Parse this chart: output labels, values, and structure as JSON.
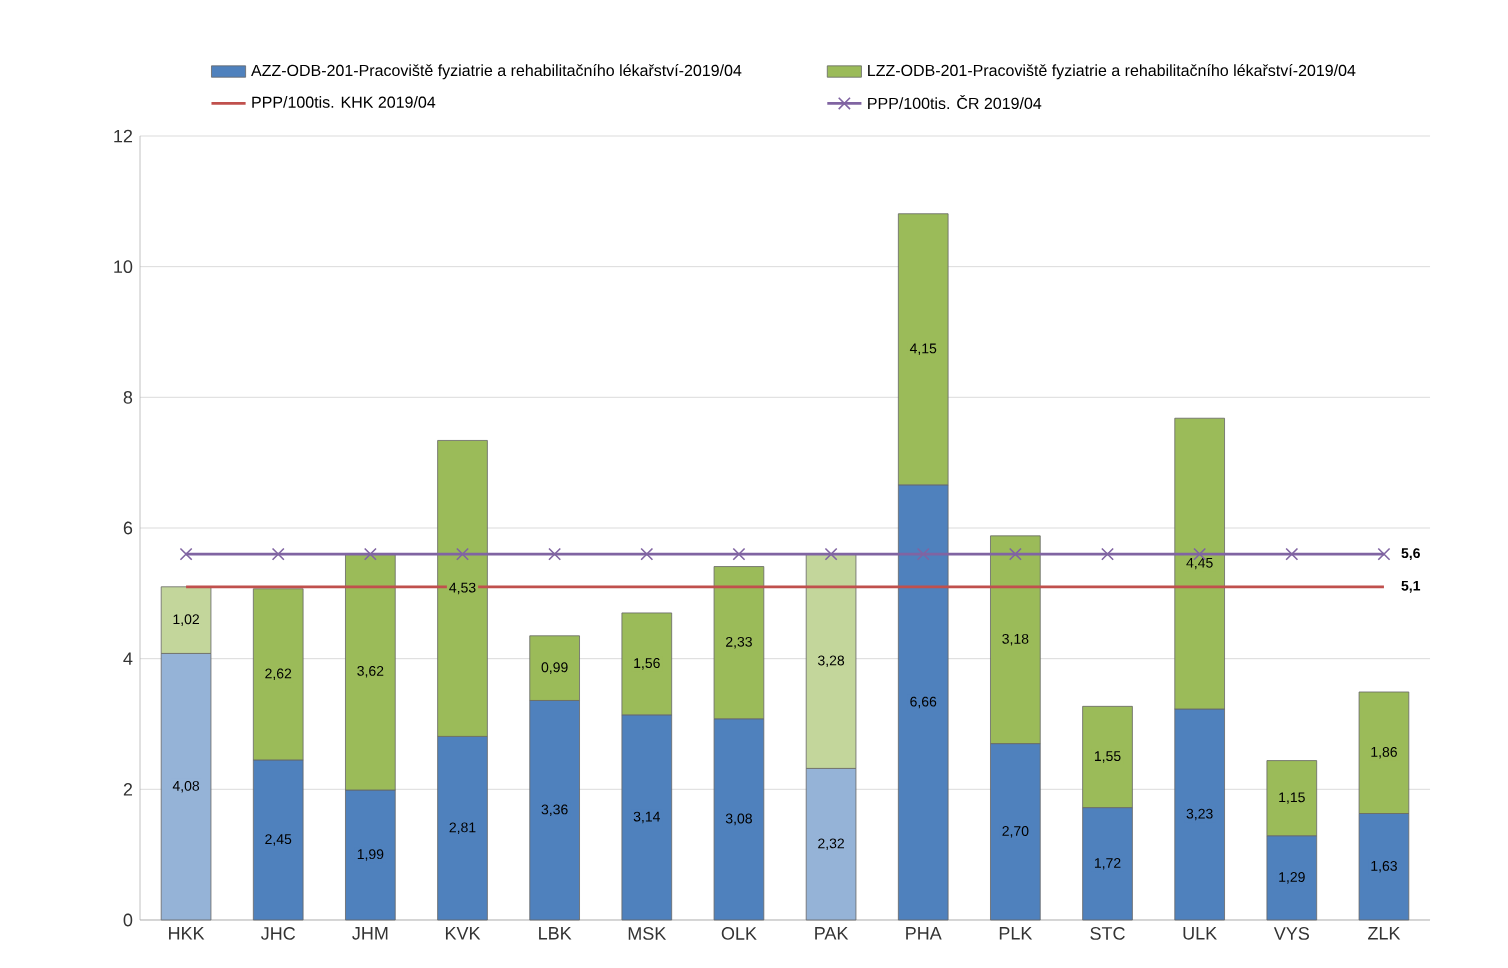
{
  "chart_data": {
    "type": "bar",
    "stacked": true,
    "categories": [
      "HKK",
      "JHC",
      "JHM",
      "KVK",
      "LBK",
      "MSK",
      "OLK",
      "PAK",
      "PHA",
      "PLK",
      "STC",
      "ULK",
      "VYS",
      "ZLK"
    ],
    "series": [
      {
        "name": "AZZ-ODB-201-Pracoviště fyziatrie a rehabilitačního lékařství-2019/04",
        "color": "#4f81bd",
        "colors": [
          "#95b3d7",
          "#4f81bd",
          "#4f81bd",
          "#4f81bd",
          "#4f81bd",
          "#4f81bd",
          "#4f81bd",
          "#95b3d7",
          "#4f81bd",
          "#4f81bd",
          "#4f81bd",
          "#4f81bd",
          "#4f81bd",
          "#4f81bd"
        ],
        "values": [
          4.08,
          2.45,
          1.99,
          2.81,
          3.36,
          3.14,
          3.08,
          2.32,
          6.66,
          2.7,
          1.72,
          3.23,
          1.29,
          1.63
        ],
        "value_labels": [
          "4,08",
          "2,45",
          "1,99",
          "2,81",
          "3,36",
          "3,14",
          "3,08",
          "2,32",
          "6,66",
          "2,70",
          "1,72",
          "3,23",
          "1,29",
          "1,63"
        ]
      },
      {
        "name": "LZZ-ODB-201-Pracoviště fyziatrie a rehabilitačního lékařství-2019/04",
        "color": "#9bbb59",
        "colors": [
          "#c3d69b",
          "#9bbb59",
          "#9bbb59",
          "#9bbb59",
          "#9bbb59",
          "#9bbb59",
          "#9bbb59",
          "#c3d69b",
          "#9bbb59",
          "#9bbb59",
          "#9bbb59",
          "#9bbb59",
          "#9bbb59",
          "#9bbb59"
        ],
        "values": [
          1.02,
          2.62,
          3.62,
          4.53,
          0.99,
          1.56,
          2.33,
          3.28,
          4.15,
          3.18,
          1.55,
          4.45,
          1.15,
          1.86
        ],
        "value_labels": [
          "1,02",
          "2,62",
          "3,62",
          "4,53",
          "0,99",
          "1,56",
          "2,33",
          "3,28",
          "4,15",
          "3,18",
          "1,55",
          "4,45",
          "1,15",
          "1,86"
        ]
      },
      {
        "name": "PPP/100tis. KHK 2019/04",
        "type": "line",
        "color": "#c0504d",
        "marker": "none",
        "values": [
          5.1,
          5.1,
          5.1,
          5.1,
          5.1,
          5.1,
          5.1,
          5.1,
          5.1,
          5.1,
          5.1,
          5.1,
          5.1,
          5.1
        ],
        "value_labels": [
          null,
          null,
          null,
          null,
          null,
          null,
          null,
          null,
          null,
          null,
          null,
          null,
          null,
          "5,1"
        ]
      },
      {
        "name": "PPP/100tis. ČR 2019/04",
        "type": "line",
        "color": "#8064a2",
        "marker": "cross",
        "values": [
          5.6,
          5.6,
          5.6,
          5.6,
          5.6,
          5.6,
          5.6,
          5.6,
          5.6,
          5.6,
          5.6,
          5.6,
          5.6,
          5.6
        ],
        "value_labels": [
          null,
          null,
          null,
          null,
          null,
          null,
          null,
          null,
          null,
          null,
          null,
          null,
          null,
          "5,6"
        ]
      }
    ],
    "ylim": [
      0,
      12
    ],
    "yticks": [
      0,
      2,
      4,
      6,
      8,
      10,
      12
    ],
    "grid": "y",
    "legend": "top"
  }
}
